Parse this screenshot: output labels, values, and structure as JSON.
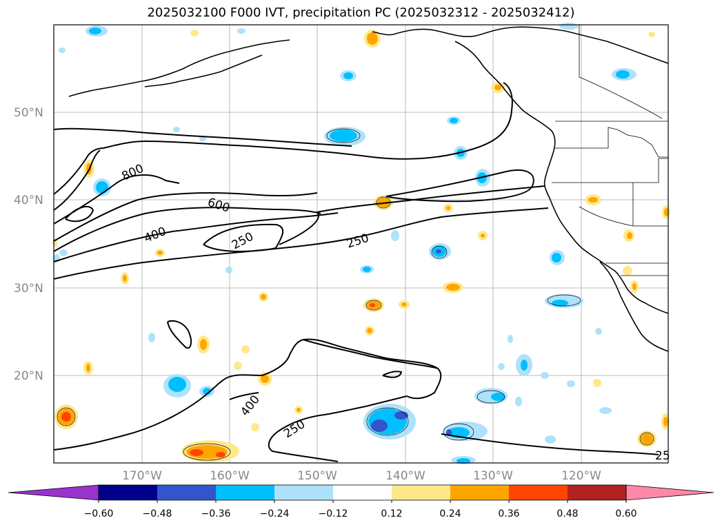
{
  "title": "2025032100 F000 IVT, precipitation PC (2025032312 - 2025032412)",
  "latitude_labels": [
    "50°N",
    "40°N",
    "30°N",
    "20°N"
  ],
  "longitude_labels": [
    "170°W",
    "160°W",
    "150°W",
    "140°W",
    "130°W",
    "120°W"
  ],
  "contour_labels": [
    "800",
    "600",
    "400",
    "250",
    "250",
    "400",
    "250",
    "25"
  ],
  "colorbar": {
    "ticks": [
      "−0.60",
      "−0.48",
      "−0.36",
      "−0.24",
      "−0.12",
      "0.12",
      "0.24",
      "0.36",
      "0.48",
      "0.60"
    ],
    "colors": [
      "#9933cc",
      "#00008b",
      "#3355cc",
      "#00bfff",
      "#aee2fb",
      "#ffffff",
      "#ffe88a",
      "#ffa500",
      "#ff4500",
      "#b22222",
      "#ff88aa"
    ]
  }
}
